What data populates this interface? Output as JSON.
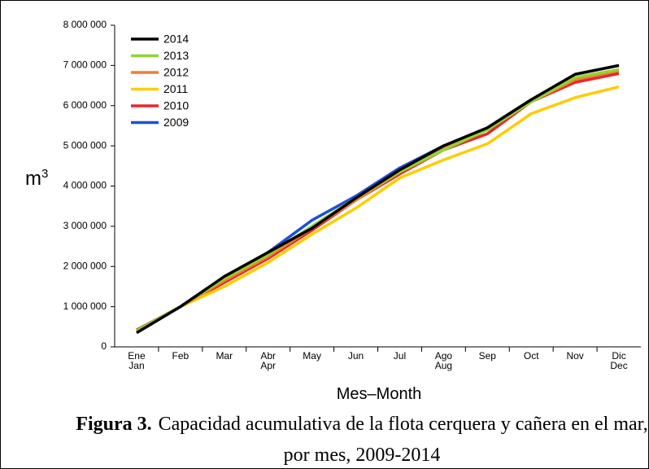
{
  "chart_data": {
    "type": "line",
    "ylabel": {
      "base": "m",
      "superscript": "3"
    },
    "xlabel": "Mes–Month",
    "categories": [
      "Ene\nJan",
      "Feb",
      "Mar",
      "Abr\nApr",
      "May",
      "Jun",
      "Jul",
      "Ago\nAug",
      "Sep",
      "Oct",
      "Nov",
      "Dic\nDec"
    ],
    "ylim": [
      0,
      8000000
    ],
    "yticks": [
      0,
      {
        "value": 1000000,
        "label": "1 000 000"
      },
      {
        "value": 2000000,
        "label": "2 000 000"
      },
      {
        "value": 3000000,
        "label": "3 000 000"
      },
      {
        "value": 4000000,
        "label": "4 000 000"
      },
      {
        "value": 5000000,
        "label": "5 000 000"
      },
      {
        "value": 6000000,
        "label": "6 000 000"
      },
      {
        "value": 7000000,
        "label": "7 000 000"
      },
      {
        "value": 8000000,
        "label": "8 000 000"
      }
    ],
    "grid": false,
    "legend": "upper left",
    "series": [
      {
        "name": "2014",
        "color": "#000000",
        "values": [
          350000,
          1000000,
          1750000,
          2350000,
          2950000,
          3700000,
          4400000,
          5000000,
          5450000,
          6150000,
          6780000,
          7000000
        ]
      },
      {
        "name": "2013",
        "color": "#8ed630",
        "values": [
          400000,
          1000000,
          1700000,
          2300000,
          3000000,
          3700000,
          4350000,
          4900000,
          5400000,
          6100000,
          6700000,
          6900000
        ]
      },
      {
        "name": "2012",
        "color": "#f47c30",
        "values": [
          400000,
          1000000,
          1650000,
          2250000,
          2950000,
          3650000,
          4350000,
          4950000,
          5400000,
          6100000,
          6650000,
          6870000
        ]
      },
      {
        "name": "2011",
        "color": "#ffcc00",
        "values": [
          380000,
          1000000,
          1500000,
          2100000,
          2800000,
          3450000,
          4200000,
          4650000,
          5050000,
          5800000,
          6200000,
          6470000
        ]
      },
      {
        "name": "2010",
        "color": "#e8262b",
        "values": [
          420000,
          1000000,
          1600000,
          2200000,
          2900000,
          3650000,
          4300000,
          4900000,
          5300000,
          6100000,
          6580000,
          6800000
        ]
      },
      {
        "name": "2009",
        "color": "#1f4fd8",
        "values": [
          400000,
          1000000,
          1650000,
          2350000,
          3150000,
          3750000,
          4450000,
          5000000,
          5400000,
          6100000,
          6680000,
          6870000
        ]
      }
    ]
  },
  "caption": {
    "label": "Figura 3.",
    "text": "Capacidad acumulativa de la flota cerquera y cañera en el mar, por mes, 2009-2014"
  }
}
